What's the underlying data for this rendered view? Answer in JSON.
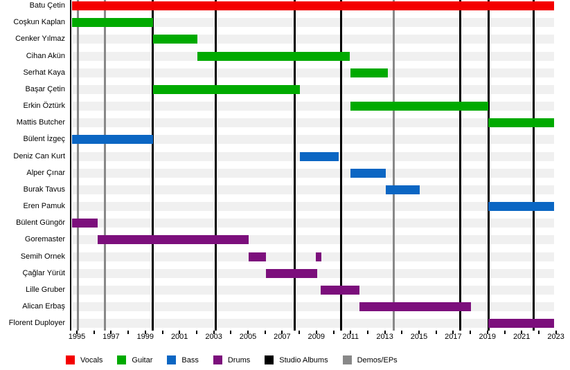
{
  "chart_data": {
    "type": "bar",
    "subtype": "band-member-timeline",
    "title": "",
    "x_axis": {
      "start_year": 1994.7,
      "end_year": 2023.2,
      "minor_tick_every_years": 1,
      "label_every_years": 2,
      "tick_labels": [
        "1995",
        "1997",
        "1999",
        "2001",
        "2003",
        "2005",
        "2007",
        "2009",
        "2011",
        "2013",
        "2015",
        "2017",
        "2019",
        "2021",
        "2023"
      ]
    },
    "colors": {
      "vocals": "#f40000",
      "guitar": "#00aa00",
      "bass": "#0b66c3",
      "drums": "#7c0f7c",
      "studio_albums": "#000000",
      "demos_eps": "#888888",
      "row_track": "#f0f0f0",
      "axis": "#000000"
    },
    "members": [
      {
        "name": "Batu Çetin",
        "role": "vocals",
        "periods": [
          [
            1994.7,
            null
          ]
        ]
      },
      {
        "name": "Coşkun Kaplan",
        "role": "guitar",
        "periods": [
          [
            1994.7,
            1999.45
          ]
        ]
      },
      {
        "name": "Cenker Yılmaz",
        "role": "guitar",
        "periods": [
          [
            1999.45,
            2002.05
          ]
        ]
      },
      {
        "name": "Cihan Akün",
        "role": "guitar",
        "periods": [
          [
            2002.05,
            2010.95
          ]
        ]
      },
      {
        "name": "Serhat Kaya",
        "role": "guitar",
        "periods": [
          [
            2011.0,
            2013.2
          ]
        ]
      },
      {
        "name": "Başar Çetin",
        "role": "guitar",
        "periods": [
          [
            1999.45,
            2008.05
          ]
        ]
      },
      {
        "name": "Erkin Öztürk",
        "role": "guitar",
        "periods": [
          [
            2011.0,
            2019.05
          ]
        ]
      },
      {
        "name": "Mattis Butcher",
        "role": "guitar",
        "periods": [
          [
            2019.05,
            null
          ]
        ]
      },
      {
        "name": "Bülent İzgeç",
        "role": "bass",
        "periods": [
          [
            1994.7,
            1999.45
          ]
        ]
      },
      {
        "name": "Deniz Can Kurt",
        "role": "bass",
        "periods": [
          [
            2008.05,
            2010.3
          ]
        ]
      },
      {
        "name": "Alper Çınar",
        "role": "bass",
        "periods": [
          [
            2011.0,
            2013.05
          ]
        ]
      },
      {
        "name": "Burak Tavus",
        "role": "bass",
        "periods": [
          [
            2013.05,
            2015.05
          ]
        ]
      },
      {
        "name": "Eren Pamuk",
        "role": "bass",
        "periods": [
          [
            2019.05,
            null
          ]
        ]
      },
      {
        "name": "Bülent Güngör",
        "role": "drums",
        "periods": [
          [
            1994.7,
            1996.2
          ]
        ]
      },
      {
        "name": "Goremaster",
        "role": "drums",
        "periods": [
          [
            1996.2,
            2005.05
          ]
        ]
      },
      {
        "name": "Semih Ornek",
        "role": "drums",
        "periods": [
          [
            2005.05,
            2006.05
          ],
          [
            2008.95,
            2009.3
          ]
        ]
      },
      {
        "name": "Çağlar Yürüt",
        "role": "drums",
        "periods": [
          [
            2006.05,
            2009.05
          ]
        ]
      },
      {
        "name": "Lille Gruber",
        "role": "drums",
        "periods": [
          [
            2009.25,
            2011.5
          ]
        ]
      },
      {
        "name": "Alican Erbaş",
        "role": "drums",
        "periods": [
          [
            2011.5,
            2018.05
          ]
        ]
      },
      {
        "name": "Florent Duployer",
        "role": "drums",
        "periods": [
          [
            2019.05,
            null
          ]
        ]
      }
    ],
    "events": {
      "studio_albums_years": [
        1999.45,
        2003.1,
        2007.75,
        2010.45,
        2017.4,
        2019.05,
        2021.7
      ],
      "demos_eps_years": [
        1995.05,
        1996.65,
        2013.5
      ]
    },
    "legend": [
      {
        "label": "Vocals",
        "role": "vocals"
      },
      {
        "label": "Guitar",
        "role": "guitar"
      },
      {
        "label": "Bass",
        "role": "bass"
      },
      {
        "label": "Drums",
        "role": "drums"
      },
      {
        "label": "Studio Albums",
        "role": "studio_albums"
      },
      {
        "label": "Demos/EPs",
        "role": "demos_eps"
      }
    ],
    "legend_position": "bottom"
  }
}
